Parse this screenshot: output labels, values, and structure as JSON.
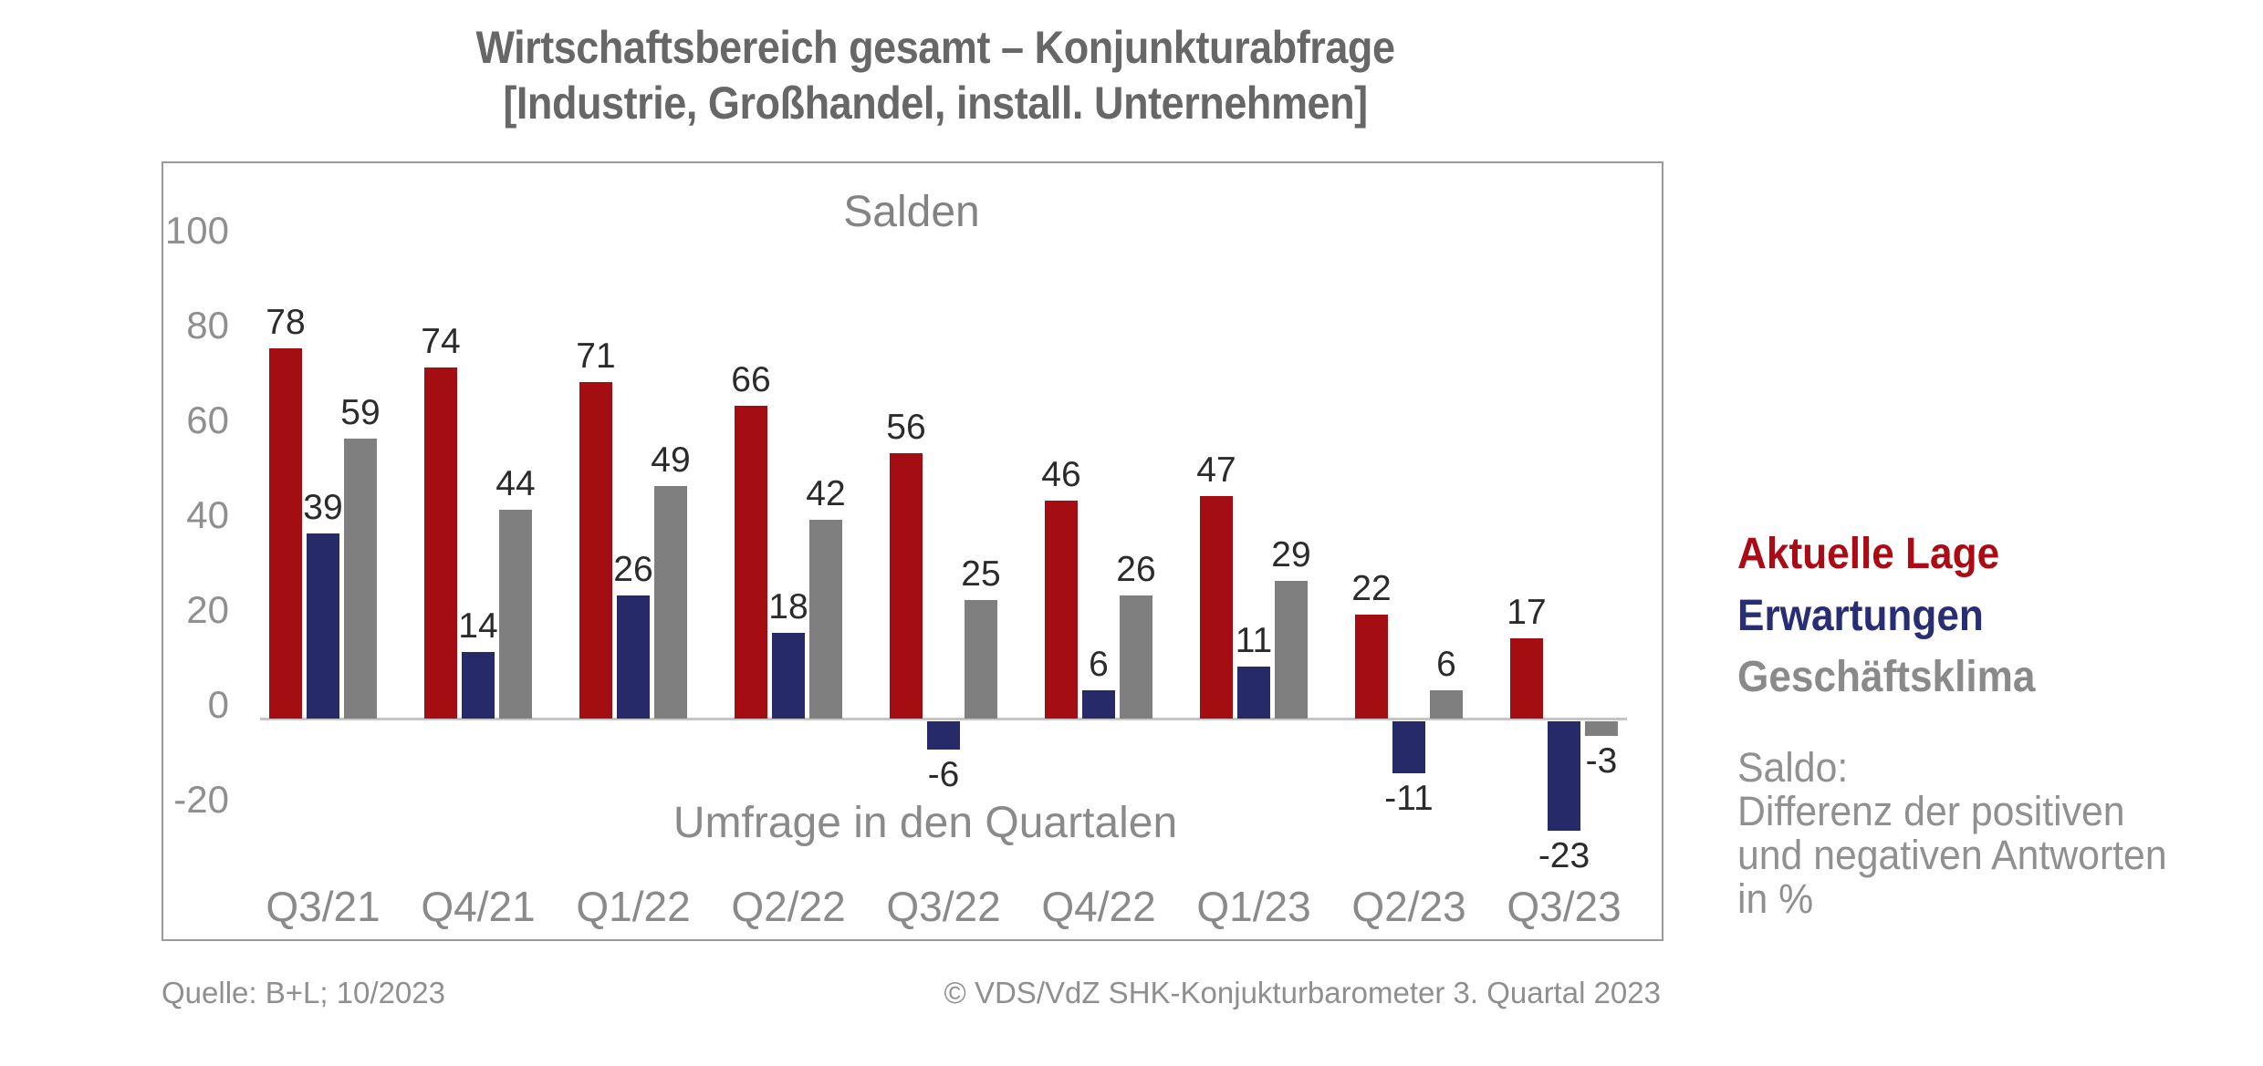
{
  "title": {
    "line1": "Wirtschaftsbereich gesamt – Konjunkturabfrage",
    "line2": "[Industrie, Großhandel, install. Unternehmen]"
  },
  "chart_data": {
    "type": "bar",
    "title": "Salden",
    "xlabel": "Umfrage in den Quartalen",
    "categories": [
      "Q3/21",
      "Q4/21",
      "Q1/22",
      "Q2/22",
      "Q3/22",
      "Q4/22",
      "Q1/23",
      "Q2/23",
      "Q3/23"
    ],
    "series": [
      {
        "name": "Aktuelle Lage",
        "color": "#A40E13",
        "legend_color": "#AB0B14",
        "values": [
          78,
          74,
          71,
          66,
          56,
          46,
          47,
          22,
          17
        ]
      },
      {
        "name": "Erwartungen",
        "color": "#272A68",
        "legend_color": "#282D74",
        "values": [
          39,
          14,
          26,
          18,
          -6,
          6,
          11,
          -11,
          -23
        ]
      },
      {
        "name": "Geschäftsklima",
        "color": "#7F7F7F",
        "legend_color": "#8A8A8A",
        "values": [
          59,
          44,
          49,
          42,
          25,
          26,
          29,
          6,
          -3
        ]
      }
    ],
    "yticks": [
      100,
      80,
      60,
      40,
      20,
      0,
      -20
    ],
    "ylim": [
      -32,
      112
    ],
    "grid": false,
    "legend_position": "right"
  },
  "legend": {
    "note_lines": [
      "Saldo:",
      "Differenz der positiven",
      "und negativen Antworten",
      "in %"
    ]
  },
  "footer": {
    "source": "Quelle: B+L; 10/2023",
    "copyright": "© VDS/VdZ SHK-Konjukturbarometer 3. Quartal 2023"
  }
}
